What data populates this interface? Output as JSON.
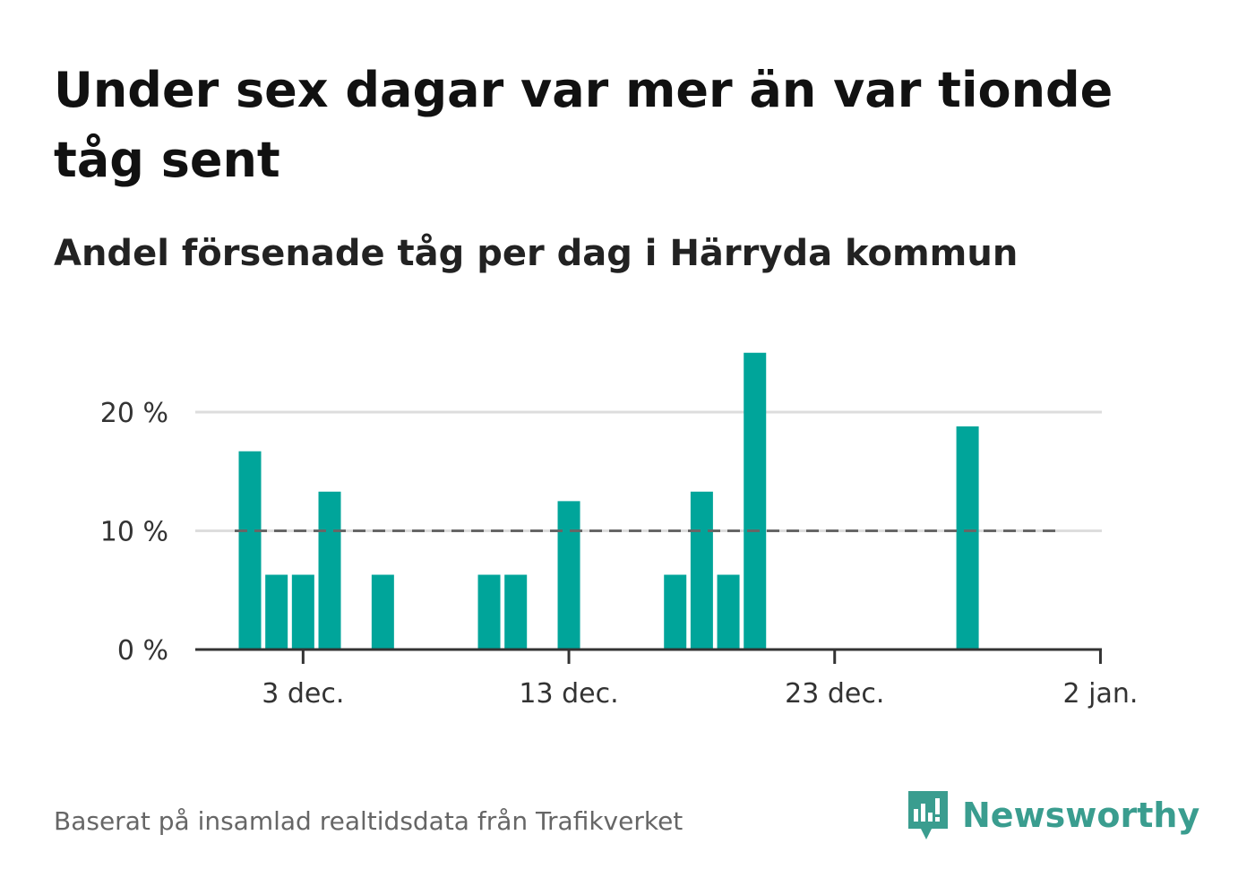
{
  "header": {
    "title": "Under sex dagar var mer än var tionde tåg sent",
    "subtitle": "Andel försenade tåg per dag i Härryda kommun"
  },
  "footer": {
    "source": "Baserat på insamlad realtidsdata från Trafikverket",
    "brand": "Newsworthy"
  },
  "colors": {
    "bar": "#00a59a",
    "gridline": "#dddddd",
    "reference_line": "#666666",
    "axis": "#333333",
    "brand": "#3a9d8f"
  },
  "chart_data": {
    "type": "bar",
    "x": [
      "2023-12-01",
      "2023-12-02",
      "2023-12-03",
      "2023-12-04",
      "2023-12-05",
      "2023-12-06",
      "2023-12-07",
      "2023-12-08",
      "2023-12-09",
      "2023-12-10",
      "2023-12-11",
      "2023-12-12",
      "2023-12-13",
      "2023-12-14",
      "2023-12-15",
      "2023-12-16",
      "2023-12-17",
      "2023-12-18",
      "2023-12-19",
      "2023-12-20",
      "2023-12-21",
      "2023-12-22",
      "2023-12-23",
      "2023-12-24",
      "2023-12-25",
      "2023-12-26",
      "2023-12-27",
      "2023-12-28",
      "2023-12-29",
      "2023-12-30",
      "2023-12-31",
      "2024-01-01"
    ],
    "values": [
      16.7,
      6.3,
      6.3,
      13.3,
      0,
      6.3,
      0,
      0,
      0,
      6.3,
      6.3,
      0,
      12.5,
      0,
      0,
      0,
      6.3,
      13.3,
      6.3,
      25.0,
      0,
      0,
      0,
      0,
      0,
      0,
      0,
      18.8,
      0,
      0,
      0,
      0
    ],
    "reference_line": 10,
    "ylim": [
      0,
      25
    ],
    "yticks": [
      {
        "value": 0,
        "label": "0 %"
      },
      {
        "value": 10,
        "label": "10 %"
      },
      {
        "value": 20,
        "label": "20 %"
      }
    ],
    "xticks": [
      {
        "value": "2023-12-03",
        "label": "3 dec."
      },
      {
        "value": "2023-12-13",
        "label": "13 dec."
      },
      {
        "value": "2023-12-23",
        "label": "23 dec."
      },
      {
        "value": "2024-01-02",
        "label": "2 jan."
      }
    ],
    "grid": true,
    "legend": "none"
  }
}
